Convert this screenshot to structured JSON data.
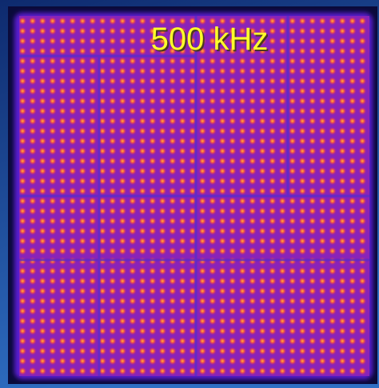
{
  "label": "500 kHz"
}
